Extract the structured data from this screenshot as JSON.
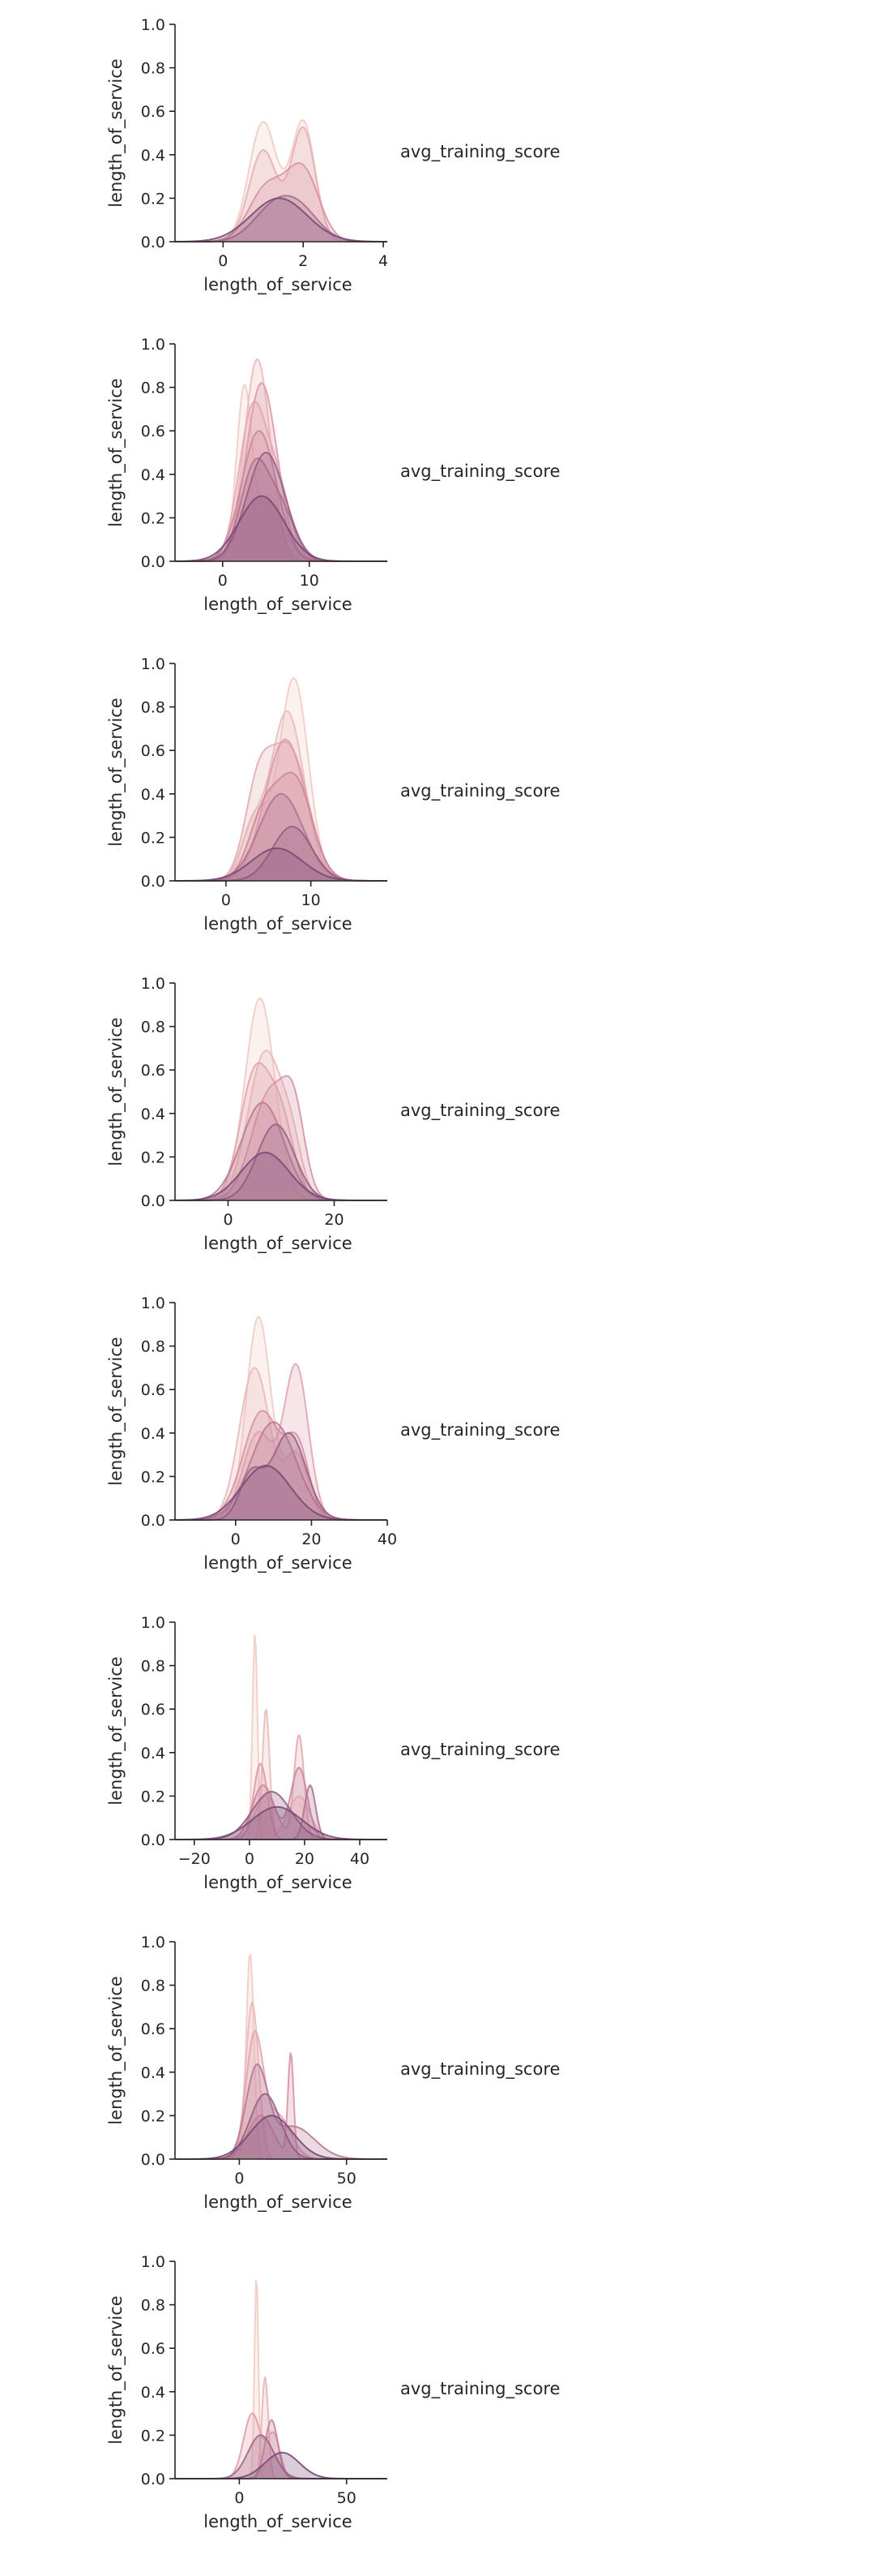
{
  "figure": {
    "background": "#ffffff",
    "axis_color": "#262626",
    "palette_light": "#f2ccc4",
    "palette_mid": "#d992a6",
    "palette_dark": "#7a4a78"
  },
  "chart_data": [
    {
      "type": "area",
      "xlabel": "length_of_service",
      "ylabel": "length_of_service",
      "legend_title": "avg_training_score",
      "legend_position": "right",
      "xlim": [
        -1.2,
        4.1
      ],
      "ylim": [
        0,
        1.0
      ],
      "xticks": [
        0,
        2,
        4
      ],
      "yticks": [
        0.0,
        0.2,
        0.4,
        0.6,
        0.8,
        1.0
      ],
      "series": [
        {
          "components": [
            [
              1.0,
              0.35,
              0.55
            ],
            [
              2.0,
              0.3,
              0.55
            ]
          ]
        },
        {
          "components": [
            [
              1.0,
              0.35,
              0.42
            ],
            [
              2.0,
              0.3,
              0.52
            ]
          ]
        },
        {
          "components": [
            [
              1.1,
              0.45,
              0.25
            ],
            [
              2.0,
              0.4,
              0.32
            ]
          ]
        },
        {
          "components": [
            [
              1.2,
              0.5,
              0.13
            ],
            [
              1.9,
              0.5,
              0.14
            ]
          ]
        },
        {
          "components": [
            [
              1.4,
              0.7,
              0.2
            ]
          ]
        }
      ]
    },
    {
      "type": "area",
      "xlabel": "length_of_service",
      "ylabel": "length_of_service",
      "legend_title": "avg_training_score",
      "legend_position": "right",
      "xlim": [
        -5.5,
        19
      ],
      "ylim": [
        0,
        1.0
      ],
      "xticks": [
        0,
        10
      ],
      "yticks": [
        0.0,
        0.2,
        0.4,
        0.6,
        0.8,
        1.0
      ],
      "series": [
        {
          "components": [
            [
              2.5,
              0.9,
              0.8
            ],
            [
              5.5,
              1.2,
              0.3
            ]
          ]
        },
        {
          "components": [
            [
              4.0,
              1.5,
              0.93
            ]
          ]
        },
        {
          "components": [
            [
              3.5,
              1.6,
              0.7
            ],
            [
              6.5,
              1.4,
              0.3
            ]
          ]
        },
        {
          "components": [
            [
              4.5,
              1.8,
              0.82
            ]
          ]
        },
        {
          "components": [
            [
              4.2,
              2.0,
              0.6
            ]
          ]
        },
        {
          "components": [
            [
              3.8,
              1.7,
              0.45
            ],
            [
              7.0,
              1.5,
              0.2
            ]
          ]
        },
        {
          "components": [
            [
              5.0,
              2.2,
              0.5
            ]
          ]
        },
        {
          "components": [
            [
              4.5,
              2.6,
              0.3
            ]
          ]
        }
      ]
    },
    {
      "type": "area",
      "xlabel": "length_of_service",
      "ylabel": "length_of_service",
      "legend_title": "avg_training_score",
      "legend_position": "right",
      "xlim": [
        -6,
        19
      ],
      "ylim": [
        0,
        1.0
      ],
      "xticks": [
        0,
        10
      ],
      "yticks": [
        0.0,
        0.2,
        0.4,
        0.6,
        0.8,
        1.0
      ],
      "series": [
        {
          "components": [
            [
              8.0,
              1.7,
              0.93
            ],
            [
              3.5,
              1.5,
              0.3
            ]
          ]
        },
        {
          "components": [
            [
              7.2,
              2.0,
              0.78
            ],
            [
              3.0,
              1.3,
              0.2
            ]
          ]
        },
        {
          "components": [
            [
              7.5,
              2.2,
              0.6
            ],
            [
              3.8,
              1.6,
              0.4
            ]
          ]
        },
        {
          "components": [
            [
              7.0,
              2.4,
              0.65
            ]
          ]
        },
        {
          "components": [
            [
              8.2,
              2.0,
              0.45
            ],
            [
              4.5,
              1.8,
              0.3
            ]
          ]
        },
        {
          "components": [
            [
              6.5,
              2.6,
              0.4
            ]
          ]
        },
        {
          "components": [
            [
              7.8,
              2.3,
              0.25
            ]
          ]
        },
        {
          "components": [
            [
              6.0,
              3.0,
              0.15
            ]
          ]
        }
      ]
    },
    {
      "type": "area",
      "xlabel": "length_of_service",
      "ylabel": "length_of_service",
      "legend_title": "avg_training_score",
      "legend_position": "right",
      "xlim": [
        -10,
        30
      ],
      "ylim": [
        0,
        1.0
      ],
      "xticks": [
        0,
        20
      ],
      "yticks": [
        0.0,
        0.2,
        0.4,
        0.6,
        0.8,
        1.0
      ],
      "series": [
        {
          "components": [
            [
              6.0,
              2.8,
              0.93
            ]
          ]
        },
        {
          "components": [
            [
              7.0,
              3.2,
              0.68
            ],
            [
              12.0,
              2.0,
              0.2
            ]
          ]
        },
        {
          "components": [
            [
              5.0,
              2.8,
              0.57
            ],
            [
              10.0,
              2.5,
              0.35
            ]
          ]
        },
        {
          "components": [
            [
              8.0,
              3.5,
              0.5
            ],
            [
              12.5,
              2.0,
              0.3
            ]
          ]
        },
        {
          "components": [
            [
              6.5,
              4.0,
              0.45
            ]
          ]
        },
        {
          "components": [
            [
              9.0,
              3.5,
              0.35
            ]
          ]
        },
        {
          "components": [
            [
              7.0,
              4.5,
              0.22
            ]
          ]
        }
      ]
    },
    {
      "type": "area",
      "xlabel": "length_of_service",
      "ylabel": "length_of_service",
      "legend_title": "avg_training_score",
      "legend_position": "right",
      "xlim": [
        -16,
        40
      ],
      "ylim": [
        0,
        1.0
      ],
      "xticks": [
        0,
        10,
        20,
        30,
        40
      ],
      "visible_xticks": [
        0,
        20,
        40
      ],
      "series": [
        {
          "components": [
            [
              6.0,
              3.2,
              0.93
            ],
            [
              16.0,
              3.5,
              0.3
            ]
          ]
        },
        {
          "components": [
            [
              5.0,
              4.0,
              0.7
            ],
            [
              16.0,
              3.0,
              0.3
            ]
          ]
        },
        {
          "components": [
            [
              16.0,
              3.2,
              0.7
            ],
            [
              6.0,
              4.0,
              0.4
            ]
          ]
        },
        {
          "components": [
            [
              7.0,
              5.0,
              0.5
            ],
            [
              16.5,
              3.0,
              0.3
            ]
          ]
        },
        {
          "components": [
            [
              10.0,
              6.0,
              0.45
            ]
          ]
        },
        {
          "components": [
            [
              14.0,
              4.5,
              0.4
            ],
            [
              4.0,
              3.0,
              0.2
            ]
          ]
        },
        {
          "components": [
            [
              8.0,
              6.5,
              0.25
            ]
          ]
        }
      ],
      "yticks": [
        0.0,
        0.2,
        0.4,
        0.6,
        0.8,
        1.0
      ]
    },
    {
      "type": "area",
      "xlabel": "length_of_service",
      "ylabel": "length_of_service",
      "legend_title": "avg_training_score",
      "legend_position": "right",
      "xlim": [
        -27,
        50
      ],
      "ylim": [
        0,
        1.0
      ],
      "xticks": [
        -20,
        0,
        20,
        40
      ],
      "yticks": [
        0.0,
        0.2,
        0.4,
        0.6,
        0.8,
        1.0
      ],
      "series": [
        {
          "components": [
            [
              2.0,
              0.9,
              0.95
            ]
          ]
        },
        {
          "components": [
            [
              6.0,
              1.3,
              0.6
            ],
            [
              18.0,
              4.0,
              0.2
            ]
          ]
        },
        {
          "components": [
            [
              18.0,
              1.8,
              0.48
            ],
            [
              6.0,
              4.0,
              0.2
            ]
          ]
        },
        {
          "components": [
            [
              4.0,
              2.5,
              0.35
            ]
          ]
        },
        {
          "components": [
            [
              18.0,
              3.0,
              0.33
            ],
            [
              5.0,
              4.0,
              0.25
            ]
          ]
        },
        {
          "components": [
            [
              22.0,
              2.0,
              0.25
            ]
          ]
        },
        {
          "components": [
            [
              8.0,
              7.0,
              0.22
            ]
          ]
        },
        {
          "components": [
            [
              10.0,
              9.0,
              0.15
            ]
          ]
        }
      ]
    },
    {
      "type": "area",
      "xlabel": "length_of_service",
      "ylabel": "length_of_service",
      "legend_title": "avg_training_score",
      "legend_position": "right",
      "xlim": [
        -30,
        69
      ],
      "ylim": [
        0,
        1.0
      ],
      "xticks": [
        0,
        50
      ],
      "yticks": [
        0.0,
        0.2,
        0.4,
        0.6,
        0.8,
        1.0
      ],
      "series": [
        {
          "components": [
            [
              5.0,
              1.8,
              0.95
            ]
          ]
        },
        {
          "components": [
            [
              6.0,
              3.0,
              0.72
            ]
          ]
        },
        {
          "components": [
            [
              7.0,
              4.0,
              0.55
            ],
            [
              18.0,
              6.0,
              0.2
            ]
          ]
        },
        {
          "components": [
            [
              24.0,
              1.3,
              0.48
            ],
            [
              10.0,
              6.0,
              0.2
            ]
          ]
        },
        {
          "components": [
            [
              8.0,
              5.0,
              0.4
            ],
            [
              25.0,
              10.0,
              0.15
            ]
          ]
        },
        {
          "components": [
            [
              12.0,
              7.0,
              0.3
            ]
          ]
        },
        {
          "components": [
            [
              15.0,
              10.0,
              0.2
            ]
          ]
        }
      ]
    },
    {
      "type": "area",
      "xlabel": "length_of_service",
      "ylabel": "length_of_service",
      "legend_title": "avg_training_score",
      "legend_position": "right",
      "xlim": [
        -30,
        69
      ],
      "ylim": [
        0,
        1.0
      ],
      "xticks": [
        0,
        50
      ],
      "yticks": [
        0.0,
        0.2,
        0.4,
        0.6,
        0.8,
        1.0
      ],
      "series": [
        {
          "components": [
            [
              8.0,
              0.9,
              0.95
            ]
          ]
        },
        {
          "components": [
            [
              12.0,
              1.5,
              0.47
            ]
          ]
        },
        {
          "components": [
            [
              6.0,
              4.0,
              0.3
            ],
            [
              16.0,
              3.0,
              0.2
            ]
          ]
        },
        {
          "components": [
            [
              15.0,
              3.0,
              0.27
            ]
          ]
        },
        {
          "components": [
            [
              10.0,
              6.0,
              0.2
            ]
          ]
        },
        {
          "components": [
            [
              20.0,
              8.0,
              0.12
            ]
          ]
        }
      ]
    }
  ]
}
